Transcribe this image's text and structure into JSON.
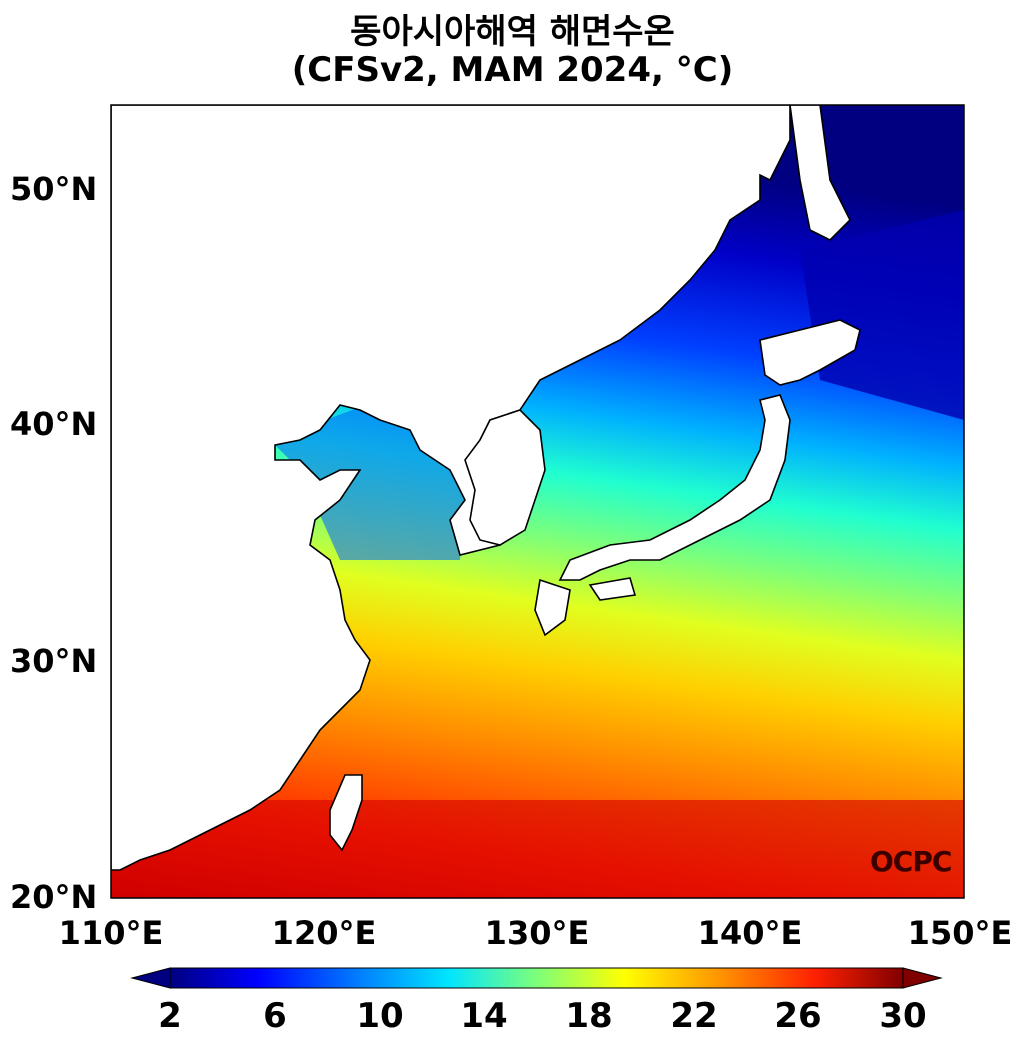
{
  "title_line1": "동아시아해역 해면수온",
  "title_line2": "(CFSv2, MAM 2024, °C)",
  "lat_labels": [
    "50°N",
    "40°N",
    "30°N",
    "20°N"
  ],
  "lon_labels": [
    "110°E",
    "120°E",
    "130°E",
    "140°E",
    "150°E"
  ],
  "colorbar": {
    "ticks": [
      "2",
      "6",
      "10",
      "14",
      "18",
      "22",
      "26",
      "30"
    ],
    "min": 2,
    "max": 30,
    "colors": [
      "#000080",
      "#0000ff",
      "#0080ff",
      "#00e5ff",
      "#7dff7a",
      "#ffff00",
      "#ff8c00",
      "#ff2000",
      "#800000"
    ]
  },
  "watermark": "OCPC",
  "map": {
    "lon_range": [
      110,
      150
    ],
    "lat_range": [
      20,
      53.5
    ],
    "variable": "sea surface temperature",
    "units": "°C"
  }
}
